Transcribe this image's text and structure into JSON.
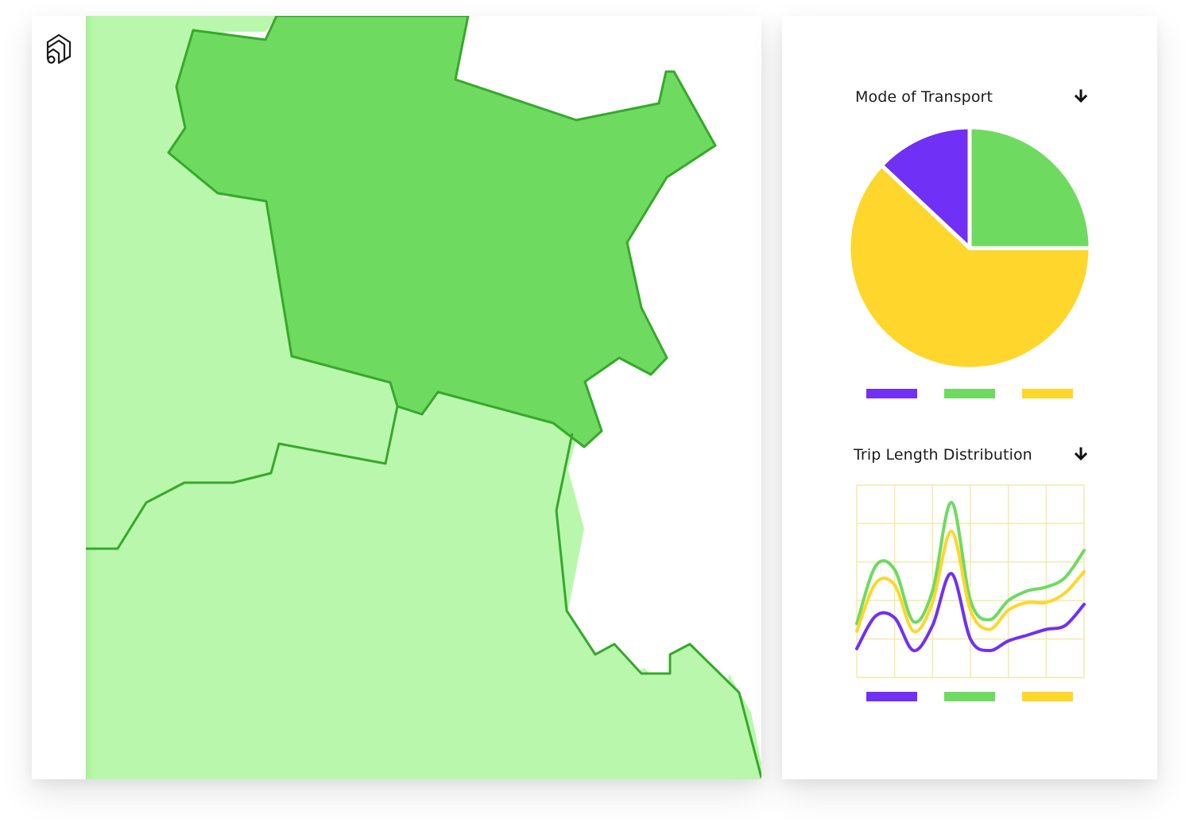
{
  "rail": {
    "logo_icon": "stacked-house-logo-icon"
  },
  "map": {
    "colors": {
      "selected_region": "#6edb60",
      "neighbor_region": "#b9f8ac",
      "border": "#37a82b",
      "background": "#ffffff"
    },
    "selected_region_name": "",
    "icons": []
  },
  "panel": {
    "mode_card": {
      "title": "Mode of Transport",
      "download_icon": "download-arrow-icon"
    },
    "trip_card": {
      "title": "Trip Length Distribution",
      "download_icon": "download-arrow-icon"
    }
  },
  "colors": {
    "purple": "#7030f5",
    "green": "#6edb60",
    "yellow": "#ffd62b",
    "grid": "#f6e9a8"
  },
  "chart_data": [
    {
      "type": "pie",
      "title": "Mode of Transport",
      "slices": [
        {
          "name": "",
          "color": "#7030f5",
          "value": 13
        },
        {
          "name": "",
          "color": "#6edb60",
          "value": 25
        },
        {
          "name": "",
          "color": "#ffd62b",
          "value": 62
        }
      ],
      "legend": [
        "#7030f5",
        "#6edb60",
        "#ffd62b"
      ],
      "legend_position": "bottom"
    },
    {
      "type": "line",
      "title": "Trip Length Distribution",
      "grid": true,
      "x": [
        0,
        0.5,
        1,
        1.5,
        2,
        2.5,
        3,
        3.5,
        4,
        4.5,
        5,
        5.5,
        6
      ],
      "ylim": [
        0,
        5
      ],
      "series": [
        {
          "color": "#7030f5",
          "values": [
            0.75,
            1.6,
            1.55,
            0.7,
            1.35,
            2.7,
            1.0,
            0.7,
            0.95,
            1.1,
            1.25,
            1.35,
            1.9
          ]
        },
        {
          "color": "#6edb60",
          "values": [
            1.4,
            2.9,
            2.8,
            1.45,
            2.25,
            4.55,
            2.0,
            1.5,
            2.0,
            2.25,
            2.35,
            2.6,
            3.3
          ]
        },
        {
          "color": "#ffd62b",
          "values": [
            1.2,
            2.45,
            2.4,
            1.2,
            1.95,
            3.8,
            1.75,
            1.25,
            1.75,
            1.95,
            1.95,
            2.2,
            2.75
          ]
        }
      ],
      "legend": [
        "#7030f5",
        "#6edb60",
        "#ffd62b"
      ],
      "legend_position": "bottom"
    }
  ]
}
